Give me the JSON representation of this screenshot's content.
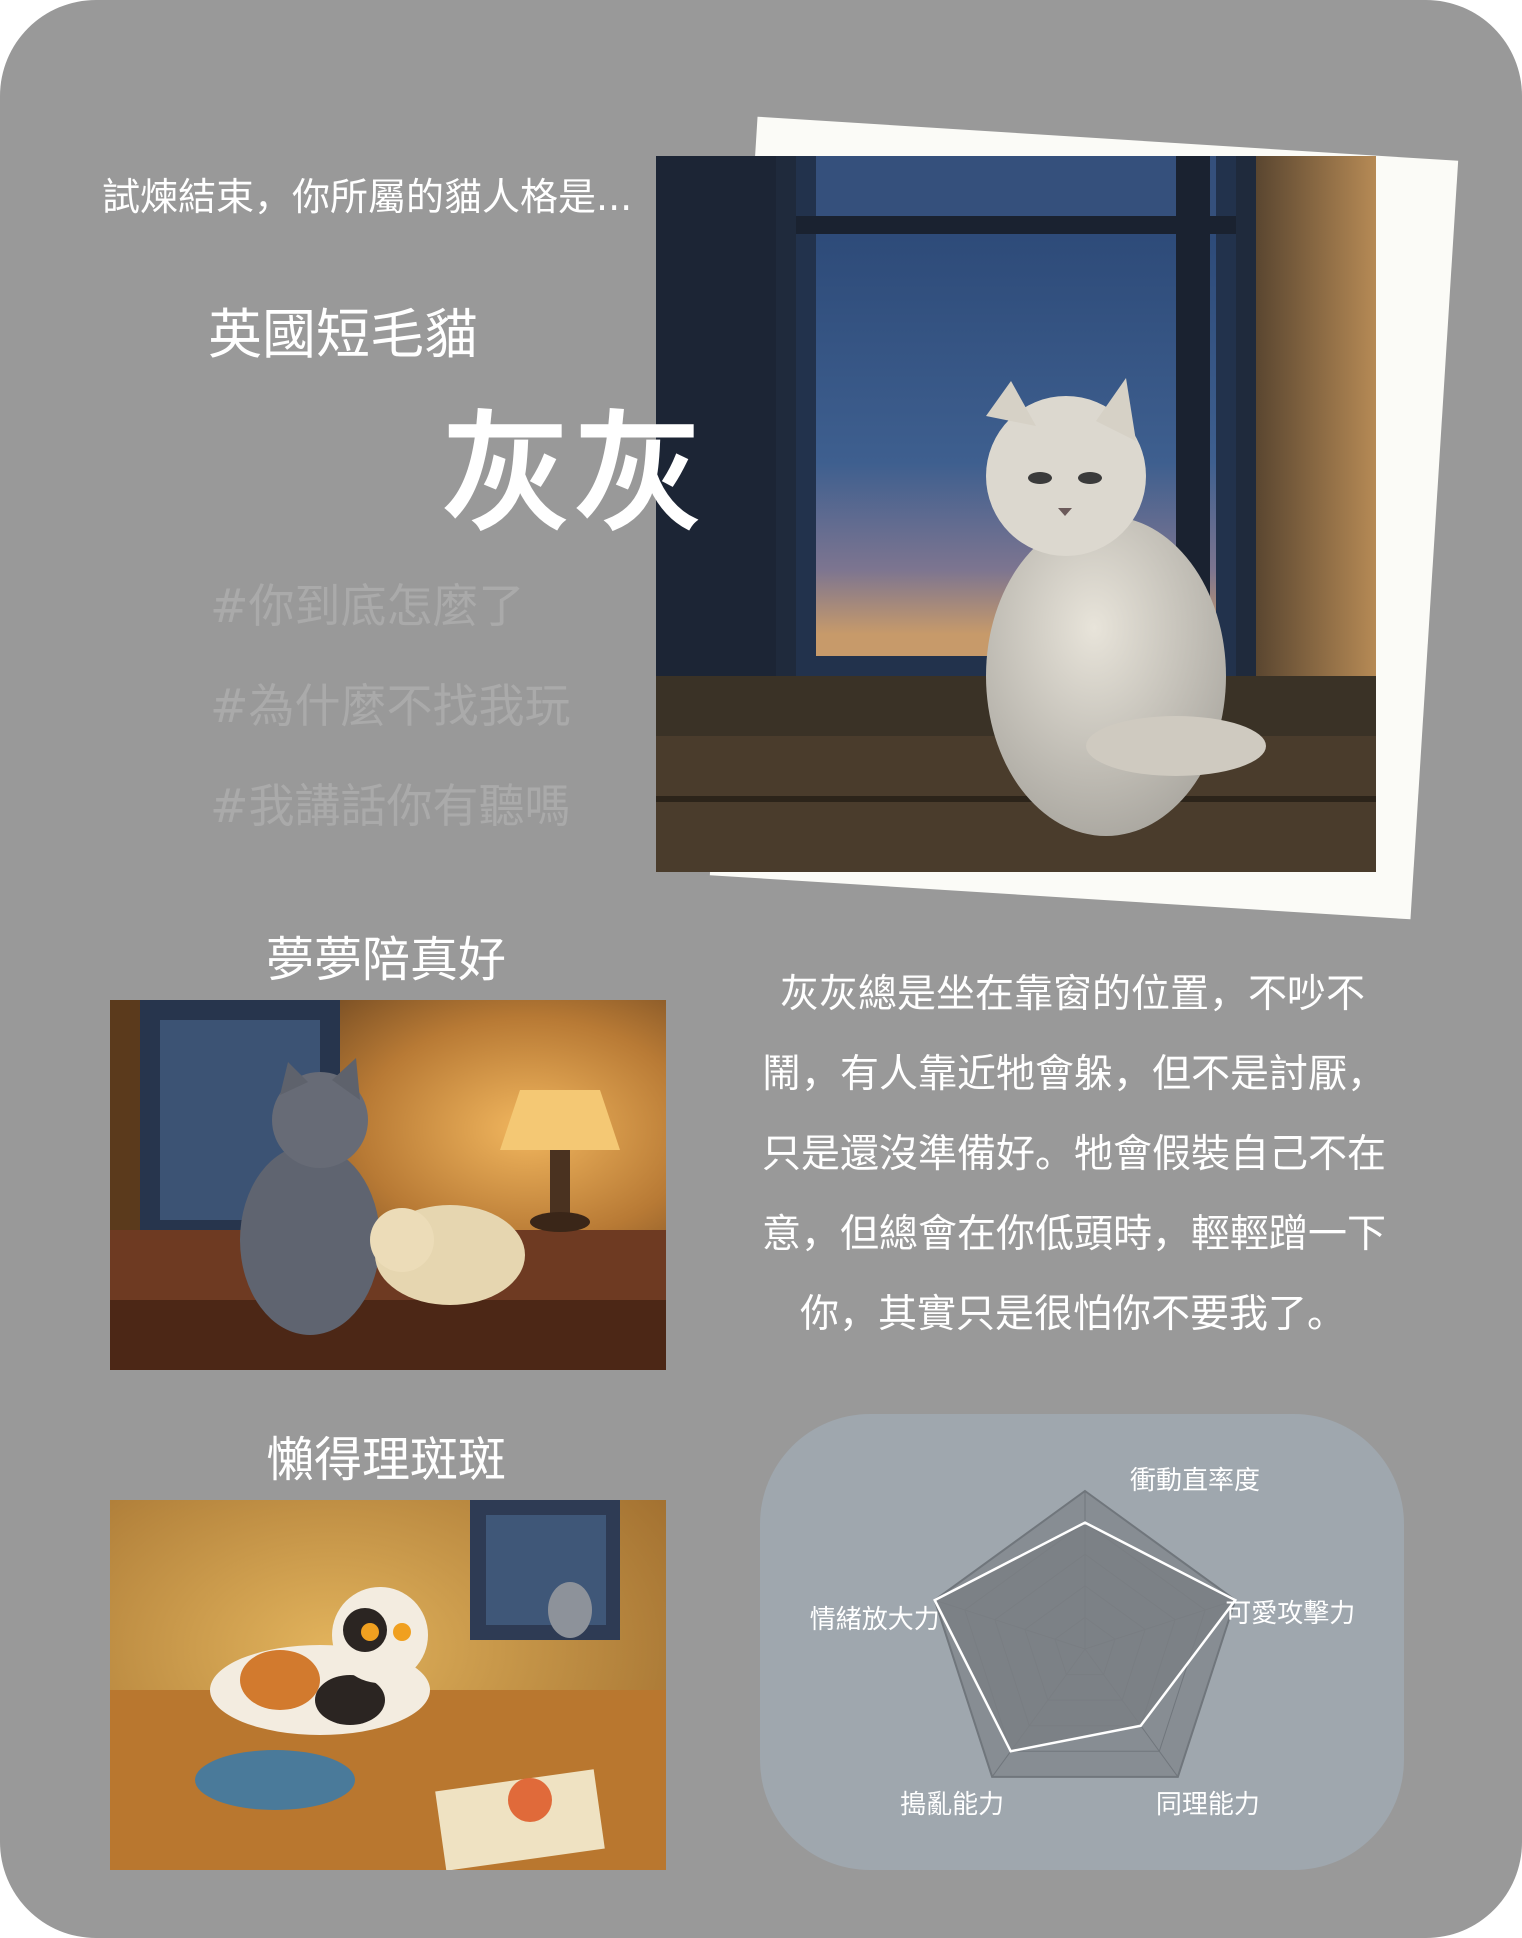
{
  "intro": "試煉結束，你所屬的貓人格是...",
  "breed": "英國短毛貓",
  "name": "灰灰",
  "tags": [
    "#你到底怎麼了",
    "#為什麼不找我玩",
    "#我講話你有聽嗎"
  ],
  "companions": [
    {
      "title": "夢夢陪真好"
    },
    {
      "title": "懶得理斑斑"
    }
  ],
  "description_lines": [
    "灰灰總是坐在靠窗的位置，不吵不",
    "鬧，有人靠近牠會躲，但不是討厭，",
    "只是還沒準備好。牠會假裝自己不在",
    "意，但總會在你低頭時，輕輕蹭一下",
    "你，其實只是很怕你不要我了。"
  ],
  "chart_data": {
    "type": "radar",
    "axes": [
      "衝動直率度",
      "可愛攻擊力",
      "同理能力",
      "搗亂能力",
      "情緒放大力"
    ],
    "values": [
      4,
      5,
      3,
      4,
      5
    ],
    "max": 5,
    "grid": true
  },
  "colors": {
    "card": "#999999",
    "radar_panel": "#9fa7ae",
    "text": "#ffffff",
    "tag_text": "#aaaaaa",
    "paper": "#fbfbf7"
  }
}
